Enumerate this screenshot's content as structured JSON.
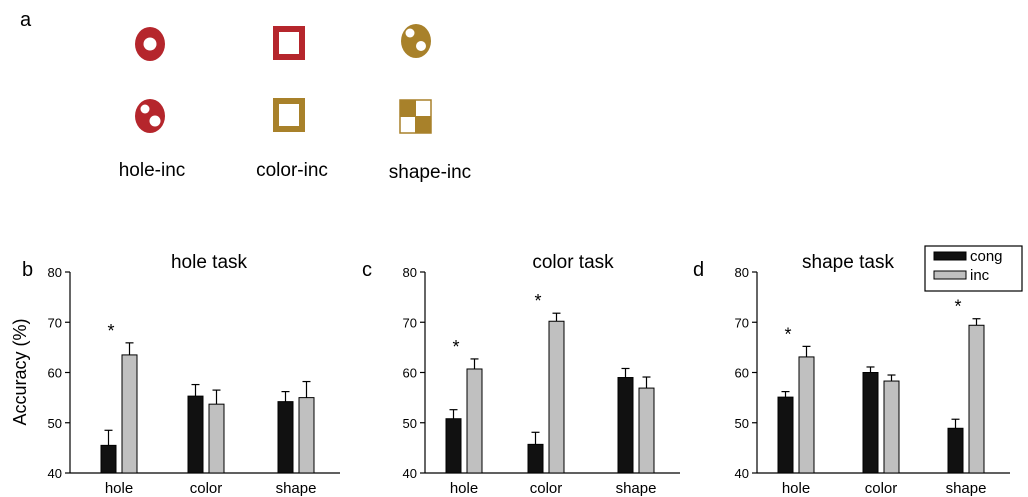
{
  "panel_a": {
    "letter": "a",
    "labels": [
      "hole-inc",
      "color-inc",
      "shape-inc"
    ],
    "stimulus_colors": {
      "red": "#b5262c",
      "gold": "#a8812a"
    }
  },
  "chart_data": [
    {
      "type": "bar",
      "letter": "b",
      "title": "hole task",
      "ylabel": "Accuracy (%)",
      "ylim": [
        40,
        80
      ],
      "yticks": [
        40,
        50,
        60,
        70,
        80
      ],
      "categories": [
        "hole",
        "color",
        "shape"
      ],
      "series": [
        {
          "name": "cong",
          "color": "#111111",
          "values": [
            45.5,
            55.3,
            54.2
          ],
          "errors": [
            3.0,
            2.3,
            2.0
          ]
        },
        {
          "name": "inc",
          "color": "#c0c0c0",
          "values": [
            63.5,
            53.7,
            55.0
          ],
          "errors": [
            2.4,
            2.8,
            3.2
          ]
        }
      ],
      "significant": [
        "hole"
      ],
      "marker": "*"
    },
    {
      "type": "bar",
      "letter": "c",
      "title": "color task",
      "ylabel": "",
      "ylim": [
        40,
        80
      ],
      "yticks": [
        40,
        50,
        60,
        70,
        80
      ],
      "categories": [
        "hole",
        "color",
        "shape"
      ],
      "series": [
        {
          "name": "cong",
          "color": "#111111",
          "values": [
            50.8,
            45.7,
            59.0
          ],
          "errors": [
            1.8,
            2.4,
            1.8
          ]
        },
        {
          "name": "inc",
          "color": "#c0c0c0",
          "values": [
            60.7,
            70.2,
            56.9
          ],
          "errors": [
            2.0,
            1.6,
            2.2
          ]
        }
      ],
      "significant": [
        "hole",
        "color"
      ],
      "marker": "*"
    },
    {
      "type": "bar",
      "letter": "d",
      "title": "shape task",
      "ylabel": "",
      "ylim": [
        40,
        80
      ],
      "yticks": [
        40,
        50,
        60,
        70,
        80
      ],
      "categories": [
        "hole",
        "color",
        "shape"
      ],
      "series": [
        {
          "name": "cong",
          "color": "#111111",
          "values": [
            55.1,
            60.0,
            48.9
          ],
          "errors": [
            1.1,
            1.1,
            1.8
          ]
        },
        {
          "name": "inc",
          "color": "#c0c0c0",
          "values": [
            63.1,
            58.3,
            69.4
          ],
          "errors": [
            2.1,
            1.2,
            1.3
          ]
        }
      ],
      "significant": [
        "hole",
        "shape"
      ],
      "marker": "*"
    }
  ],
  "legend": {
    "placement": "top-right",
    "entries": [
      {
        "label": "cong",
        "color": "#111111"
      },
      {
        "label": "inc",
        "color": "#c0c0c0"
      }
    ]
  }
}
